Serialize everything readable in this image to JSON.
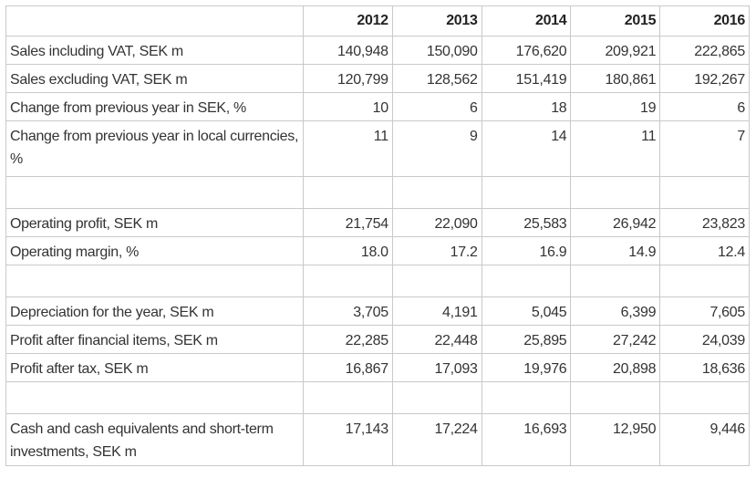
{
  "table": {
    "corner": "",
    "years": [
      "2012",
      "2013",
      "2014",
      "2015",
      "2016"
    ],
    "rows": [
      {
        "label": "Sales including VAT, SEK m",
        "values": [
          "140,948",
          "150,090",
          "176,620",
          "209,921",
          "222,865"
        ]
      },
      {
        "label": "Sales excluding VAT, SEK m",
        "values": [
          "120,799",
          "128,562",
          "151,419",
          "180,861",
          "192,267"
        ]
      },
      {
        "label": "Change from previous year in SEK, %",
        "values": [
          "10",
          "6",
          "18",
          "19",
          "6"
        ]
      },
      {
        "label": "Change from previous year in local currencies, %",
        "values": [
          "11",
          "9",
          "14",
          "11",
          "7"
        ]
      },
      {
        "label": "Operating profit, SEK m",
        "values": [
          "21,754",
          "22,090",
          "25,583",
          "26,942",
          "23,823"
        ]
      },
      {
        "label": "Operating margin, %",
        "values": [
          "18.0",
          "17.2",
          "16.9",
          "14.9",
          "12.4"
        ]
      },
      {
        "label": "Depreciation for the year, SEK m",
        "values": [
          "3,705",
          "4,191",
          "5,045",
          "6,399",
          "7,605"
        ]
      },
      {
        "label": "Profit after financial items, SEK m",
        "values": [
          "22,285",
          "22,448",
          "25,895",
          "27,242",
          "24,039"
        ]
      },
      {
        "label": "Profit after tax, SEK m",
        "values": [
          "16,867",
          "17,093",
          "19,976",
          "20,898",
          "18,636"
        ]
      },
      {
        "label": "Cash and cash equivalents and short-term investments, SEK m",
        "values": [
          "17,143",
          "17,224",
          "16,693",
          "12,950",
          "9,446"
        ]
      }
    ]
  }
}
